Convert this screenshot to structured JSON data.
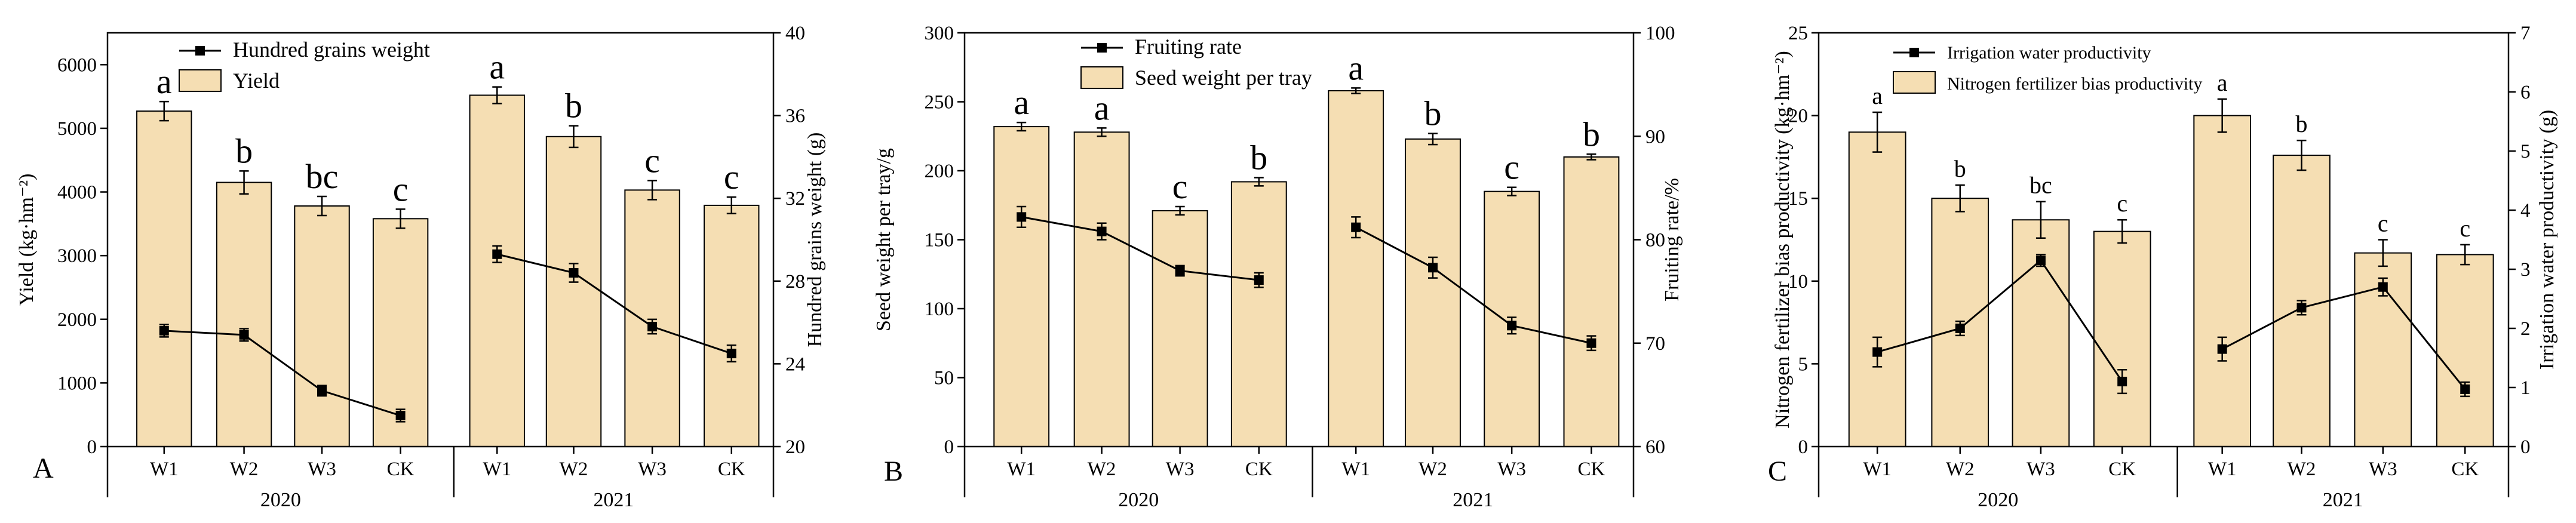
{
  "colors": {
    "bar_fill": "#f5deb3",
    "bar_stroke": "#000000",
    "line": "#000000"
  },
  "chart_data": [
    {
      "panel": "A",
      "type": "bar",
      "categories": [
        "W1",
        "W2",
        "W3",
        "CK",
        "W1",
        "W2",
        "W3",
        "CK"
      ],
      "groups": [
        "2020",
        "2021"
      ],
      "left_axis": {
        "label": "Yield (kg·hm⁻²)",
        "ylim": [
          0,
          6500
        ],
        "ticks": [
          "0",
          "1000",
          "2000",
          "3000",
          "4000",
          "5000",
          "6000"
        ]
      },
      "right_axis": {
        "label": "Hundred grains weight (g)",
        "ylim": [
          20,
          40
        ],
        "ticks": [
          "20",
          "24",
          "28",
          "32",
          "36",
          "40"
        ]
      },
      "legend": {
        "line": "Hundred grains weight",
        "bar": "Yield"
      },
      "bars": {
        "name": "Yield",
        "values": [
          5270,
          4150,
          3780,
          3580,
          5520,
          4870,
          4030,
          3790
        ],
        "errors": [
          150,
          180,
          150,
          150,
          130,
          170,
          150,
          130
        ],
        "letters": [
          "a",
          "b",
          "bc",
          "c",
          "a",
          "b",
          "c",
          "c"
        ]
      },
      "line": {
        "name": "Hundred grains weight",
        "values": [
          25.6,
          25.4,
          22.7,
          21.5,
          29.3,
          28.4,
          25.8,
          24.5
        ],
        "errors": [
          0.3,
          0.3,
          0.25,
          0.3,
          0.4,
          0.45,
          0.35,
          0.4
        ]
      }
    },
    {
      "panel": "B",
      "type": "bar",
      "categories": [
        "W1",
        "W2",
        "W3",
        "CK",
        "W1",
        "W2",
        "W3",
        "CK"
      ],
      "groups": [
        "2020",
        "2021"
      ],
      "left_axis": {
        "label": "Seed weight per tray/g",
        "ylim": [
          0,
          300
        ],
        "ticks": [
          "0",
          "50",
          "100",
          "150",
          "200",
          "250",
          "300"
        ]
      },
      "right_axis": {
        "label": "Fruiting rate/%",
        "ylim": [
          60,
          100
        ],
        "ticks": [
          "60",
          "70",
          "80",
          "90",
          "100"
        ]
      },
      "legend": {
        "line": "Fruiting rate",
        "bar": "Seed weight per tray"
      },
      "bars": {
        "name": "Seed weight per tray",
        "values": [
          232,
          228,
          171,
          192,
          258,
          223,
          185,
          210
        ],
        "errors": [
          3,
          3,
          3,
          3,
          2,
          4,
          3,
          2
        ],
        "letters": [
          "a",
          "a",
          "c",
          "b",
          "a",
          "b",
          "c",
          "b"
        ]
      },
      "line": {
        "name": "Fruiting rate",
        "values": [
          82.2,
          80.8,
          77.0,
          76.1,
          81.2,
          77.3,
          71.7,
          70.0
        ],
        "errors": [
          1.0,
          0.8,
          0.5,
          0.7,
          1.0,
          1.0,
          0.8,
          0.7
        ]
      }
    },
    {
      "panel": "C",
      "type": "bar",
      "categories": [
        "W1",
        "W2",
        "W3",
        "CK",
        "W1",
        "W2",
        "W3",
        "CK"
      ],
      "groups": [
        "2020",
        "2021"
      ],
      "left_axis": {
        "label": "Nitrogen fertilizer bias productivity (kg·hm⁻²)",
        "ylim": [
          0,
          25
        ],
        "ticks": [
          "0",
          "5",
          "10",
          "15",
          "20",
          "25"
        ]
      },
      "right_axis": {
        "label": "Irrigation water productivity (g)",
        "ylim": [
          0,
          7
        ],
        "ticks": [
          "0",
          "1",
          "2",
          "3",
          "4",
          "5",
          "6",
          "7"
        ]
      },
      "legend": {
        "line": "Irrigation water productivity",
        "bar": "Nitrogen fertilizer bias productivity"
      },
      "bars": {
        "name": "Nitrogen fertilizer bias productivity",
        "values": [
          19.0,
          15.0,
          13.7,
          13.0,
          20.0,
          17.6,
          11.7,
          11.6
        ],
        "errors": [
          1.2,
          0.8,
          1.1,
          0.7,
          1.0,
          0.9,
          0.8,
          0.6
        ],
        "letters": [
          "a",
          "b",
          "bc",
          "c",
          "a",
          "b",
          "c",
          "c"
        ]
      },
      "line": {
        "name": "Irrigation water productivity",
        "values": [
          1.6,
          2.0,
          3.15,
          1.1,
          1.65,
          2.35,
          2.7,
          0.97
        ],
        "errors": [
          0.25,
          0.12,
          0.1,
          0.2,
          0.2,
          0.12,
          0.15,
          0.12
        ]
      }
    }
  ]
}
